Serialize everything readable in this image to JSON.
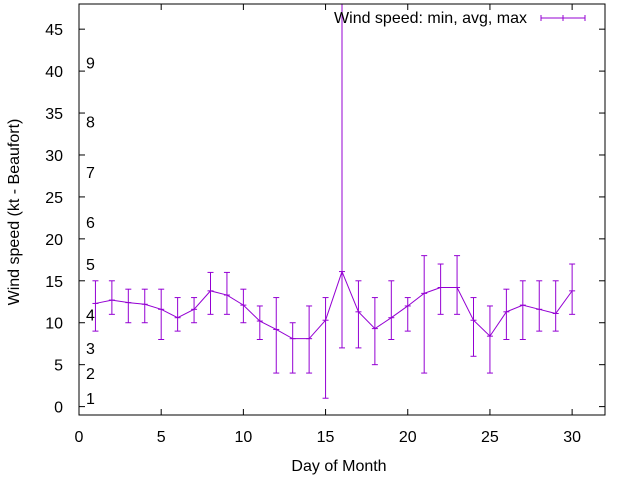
{
  "chart_data": {
    "type": "line",
    "xlabel": "Day of Month",
    "ylabel": "Wind speed (kt - Beaufort)",
    "xlim": [
      0,
      32
    ],
    "ylim": [
      -1,
      48
    ],
    "x_ticks": [
      "0",
      "5",
      "10",
      "15",
      "20",
      "25",
      "30"
    ],
    "y_ticks": [
      "0",
      "5",
      "10",
      "15",
      "20",
      "25",
      "30",
      "35",
      "40",
      "45"
    ],
    "grid": false,
    "legend_position": "top-right",
    "beaufort_scale": [
      {
        "label": "1",
        "knots": 1
      },
      {
        "label": "2",
        "knots": 4
      },
      {
        "label": "3",
        "knots": 7
      },
      {
        "label": "4",
        "knots": 11
      },
      {
        "label": "5",
        "knots": 17
      },
      {
        "label": "6",
        "knots": 22
      },
      {
        "label": "7",
        "knots": 28
      },
      {
        "label": "8",
        "knots": 34
      },
      {
        "label": "9",
        "knots": 41
      }
    ],
    "series": [
      {
        "name": "Wind speed: min, avg, max",
        "color": "#9400d3",
        "x": [
          1,
          2,
          3,
          4,
          5,
          6,
          7,
          8,
          9,
          10,
          11,
          12,
          13,
          14,
          15,
          16,
          17,
          18,
          19,
          20,
          21,
          22,
          23,
          24,
          25,
          26,
          27,
          28,
          29,
          30
        ],
        "avg": [
          12.3,
          12.7,
          12.4,
          12.2,
          11.6,
          10.6,
          11.6,
          13.8,
          13.3,
          12.1,
          10.2,
          9.2,
          8.1,
          8.1,
          10.3,
          16.1,
          11.3,
          9.3,
          10.6,
          12.0,
          13.5,
          14.2,
          14.2,
          10.3,
          8.4,
          11.3,
          12.1,
          11.6,
          11.1,
          13.8
        ],
        "min": [
          9,
          11,
          10,
          10,
          8,
          9,
          10,
          11,
          11,
          10,
          8,
          4,
          4,
          4,
          1,
          7,
          7,
          5,
          8,
          9,
          4,
          11,
          11,
          6,
          4,
          8,
          8,
          9,
          9,
          11
        ],
        "max": [
          15,
          15,
          14,
          14,
          14,
          13,
          13,
          16,
          16,
          14,
          12,
          13,
          10,
          12,
          13,
          48,
          15,
          13,
          15,
          13,
          18,
          17,
          18,
          13,
          12,
          14,
          15,
          15,
          15,
          17
        ]
      }
    ]
  }
}
